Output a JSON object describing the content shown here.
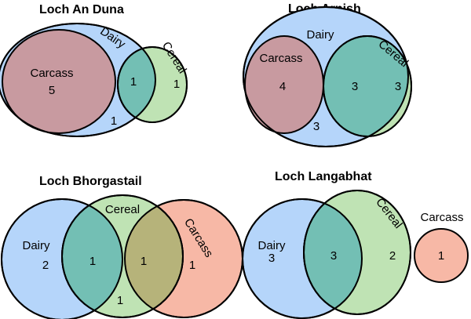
{
  "panels": [
    {
      "title": "Loch An Duna",
      "labels": {
        "dairy": "Dairy",
        "cereal": "Cereal",
        "carcass": "Carcass"
      },
      "counts": {
        "carcass": "5",
        "dairy_cereal": "1",
        "cereal": "1",
        "dairy": "1"
      }
    },
    {
      "title": "Loch Arnish",
      "labels": {
        "dairy": "Dairy",
        "cereal": "Cereal",
        "carcass": "Carcass"
      },
      "counts": {
        "carcass": "4",
        "dairy_cereal": "3",
        "cereal": "3",
        "dairy": "3"
      }
    },
    {
      "title": "Loch Bhorgastail",
      "labels": {
        "dairy": "Dairy",
        "cereal": "Cereal",
        "carcass": "Carcass"
      },
      "counts": {
        "dairy": "2",
        "dairy_cereal": "1",
        "cereal_carcass": "1",
        "carcass": "1",
        "cereal": "1"
      }
    },
    {
      "title": "Loch Langabhat",
      "labels": {
        "dairy": "Dairy",
        "cereal": "Cereal",
        "carcass": "Carcass"
      },
      "counts": {
        "dairy": "3",
        "dairy_cereal": "3",
        "cereal": "2",
        "carcass": "1"
      }
    }
  ],
  "colors": {
    "dairy": "#b5d5fa",
    "cereal": "#bfe3b4",
    "carcass": "#c89aa0",
    "carcass_alt": "#f7b8a6",
    "dairy_cereal_overlap": "#73bfb4",
    "cereal_carcass_overlap": "#b6b37a"
  }
}
